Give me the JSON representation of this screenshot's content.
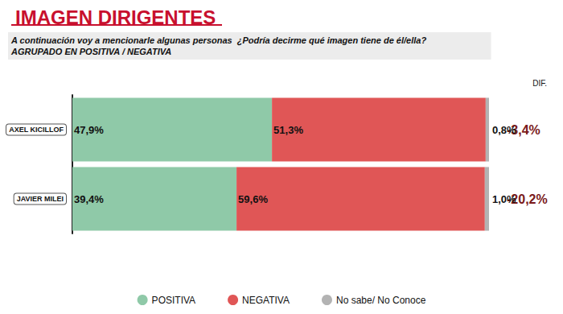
{
  "chart_data": {
    "type": "bar",
    "orientation": "horizontal",
    "stacked": true,
    "title": "IMAGEN DIRIGENTES",
    "subtitle": "A continuación voy a mencionarle algunas personas  ¿Podría decirme qué imagen tiene de él/ella?\nAGRUPADO EN POSITIVA / NEGATIVA",
    "categories": [
      "AXEL KICILLOF",
      "JAVIER MILEI"
    ],
    "series": [
      {
        "name": "POSITIVA",
        "color": "#8fc9a8",
        "values": [
          47.9,
          39.4
        ],
        "value_labels": [
          "47,9%",
          "39,4%"
        ]
      },
      {
        "name": "NEGATIVA",
        "color": "#e05656",
        "values": [
          51.3,
          59.6
        ],
        "value_labels": [
          "51,3%",
          "59,6%"
        ]
      },
      {
        "name": "No sabe/ No Conoce",
        "color": "#b3b3b3",
        "values": [
          0.8,
          1.0
        ],
        "value_labels": [
          "0,8%",
          "1,0%"
        ]
      }
    ],
    "differences": {
      "title": "DIF.",
      "values": [
        -3.4,
        -20.2
      ],
      "value_labels": [
        "-3,4%",
        "-20,2%"
      ],
      "color": "#7a1a1a"
    },
    "xlim": [
      0,
      100
    ],
    "data_labels": true,
    "tick_labels": "y",
    "grid": false,
    "legend": "bottom"
  }
}
